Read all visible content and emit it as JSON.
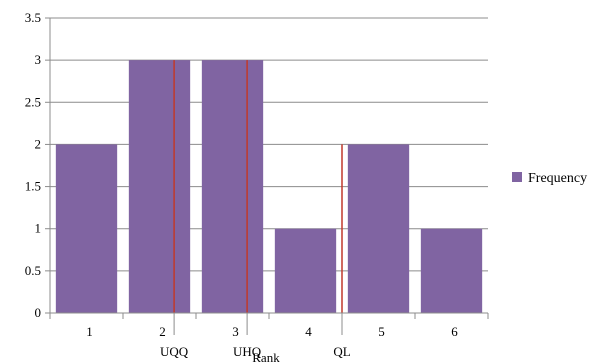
{
  "chart_data": {
    "type": "bar",
    "categories": [
      "1",
      "2",
      "3",
      "4",
      "5",
      "6"
    ],
    "series": [
      {
        "name": "Frequency",
        "values": [
          2,
          3,
          3,
          1,
          2,
          1
        ],
        "color": "#8064A2"
      }
    ],
    "xlabel": "Rank",
    "ylabel": "",
    "ylim": [
      0,
      3.5
    ],
    "yticks": [
      "0",
      "0.5",
      "1",
      "1.5",
      "2",
      "2.5",
      "3",
      "3.5"
    ],
    "grid": true,
    "legend_position": "right",
    "markers": [
      {
        "label": "UQQ",
        "x": 2.2,
        "color": "#C0392B"
      },
      {
        "label": "UHQ",
        "x": 3.2,
        "color": "#C0392B"
      },
      {
        "label": "QL",
        "x": 4.5,
        "color": "#C0392B"
      }
    ]
  }
}
